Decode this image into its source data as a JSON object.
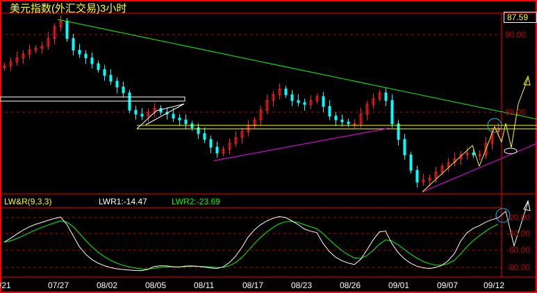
{
  "title": "美元指数(外汇交易)3小时",
  "last_price": "87.59",
  "price_axis": [
    "90.00",
    "88.00"
  ],
  "price_axis_values": [
    90,
    88
  ],
  "indicator": {
    "name": "LW&R(9,3,3)",
    "lwr1": "LWR1:-14.47",
    "lwr2": "LWR2:-23.69"
  },
  "indicator_axis": [
    "-20.00",
    "-40.00",
    "-60.00",
    "-80.00"
  ],
  "date_labels": [
    "/21",
    "07/27",
    "08/02",
    "08/05",
    "08/11",
    "08/17",
    "08/23",
    "08/26",
    "09/01",
    "09/07",
    "09/12"
  ],
  "colors": {
    "frame": "#ff0000",
    "up": "#ff2020",
    "down": "#00ffff",
    "trendline": "#00ff00",
    "support": "#ff00ff",
    "level": "#ffff00",
    "lwr1": "#ffffff",
    "lwr2": "#00ff00"
  },
  "chart_data": {
    "type": "candlestick",
    "closes": [
      89.2,
      89.3,
      89.4,
      89.5,
      89.6,
      89.65,
      89.7,
      89.9,
      90.2,
      90.35,
      89.9,
      89.6,
      89.5,
      89.4,
      89.25,
      89.1,
      88.95,
      88.8,
      88.65,
      88.5,
      88.05,
      87.95,
      87.9,
      88.0,
      88.1,
      88.0,
      87.95,
      87.85,
      87.8,
      87.7,
      87.6,
      87.45,
      87.3,
      87.1,
      86.95,
      87.05,
      87.2,
      87.35,
      87.5,
      87.65,
      87.8,
      88.05,
      88.3,
      88.45,
      88.6,
      88.45,
      88.3,
      88.25,
      88.2,
      88.3,
      88.4,
      88.15,
      87.9,
      87.8,
      87.75,
      87.7,
      87.7,
      87.95,
      88.2,
      88.35,
      88.5,
      88.3,
      87.7,
      87.3,
      86.9,
      86.5,
      86.2,
      86.25,
      86.3,
      86.45,
      86.6,
      86.7,
      86.8,
      86.9,
      86.95,
      86.9,
      86.9,
      87.2,
      87.5,
      87.59
    ],
    "ylim": [
      85.9,
      90.5
    ]
  }
}
